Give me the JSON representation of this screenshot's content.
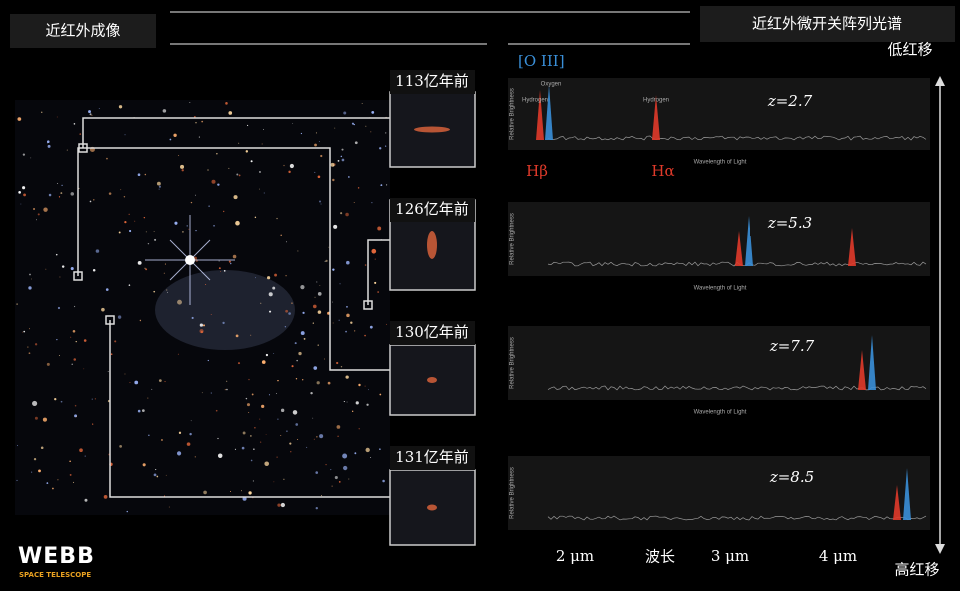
{
  "header": {
    "left_title": "近红外成像",
    "right_title": "近红外微开关阵列光谱",
    "low_redshift": "低红移",
    "high_redshift": "高红移"
  },
  "galaxies": [
    {
      "age": "113亿年前",
      "redshift": "z=2.7"
    },
    {
      "age": "126亿年前",
      "redshift": "z=5.3"
    },
    {
      "age": "130亿年前",
      "redshift": "z=7.7"
    },
    {
      "age": "131亿年前",
      "redshift": "z=8.5"
    }
  ],
  "lines": {
    "oiii": "[O III]",
    "hbeta": "Hβ",
    "halpha": "Hα",
    "hydrogen": "Hydrogen",
    "oxygen": "Oxygen"
  },
  "spectrum_axes": {
    "y_label": "Relative Brightness",
    "x_label": "Wavelength of Light"
  },
  "wavelength_axis": {
    "ticks": [
      "2 μm",
      "3 μm",
      "4 μm"
    ],
    "label": "波长"
  },
  "logo": {
    "name": "WEBB",
    "subtitle": "SPACE TELESCOPE"
  }
}
